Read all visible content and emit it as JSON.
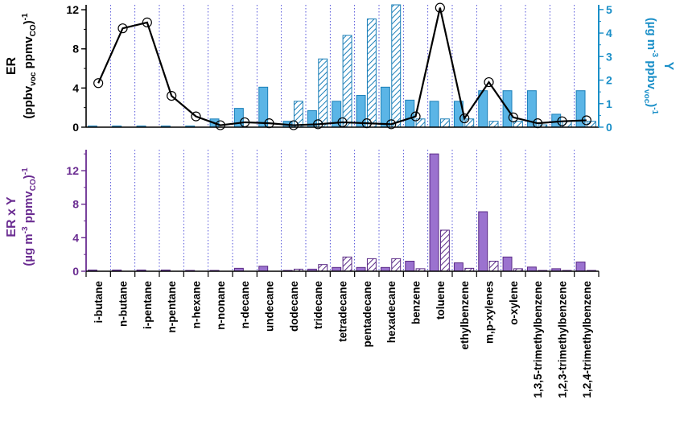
{
  "chart_data": [
    {
      "type": "bar+line",
      "panel": "top",
      "categories": [
        "i-butane",
        "n-butane",
        "i-pentane",
        "n-pentane",
        "n-hexane",
        "n-nonane",
        "n-decane",
        "undecane",
        "dodecane",
        "tridecane",
        "tetradecane",
        "pentadecane",
        "hexadecane",
        "benzene",
        "toluene",
        "ethylbenzene",
        "m,p-xylenes",
        "o-xylene",
        "1,3,5-trimethylbenzene",
        "1,2,3-trimethylbenzene",
        "1,2,4-trimethylbenzene"
      ],
      "left_axis": {
        "label_main": "ER",
        "label_unit": [
          "(ppbv",
          "voc",
          " ppmv",
          "CO",
          ")",
          "-1"
        ],
        "ylim": [
          0,
          12.5
        ],
        "ticks": [
          0,
          4,
          8,
          12
        ],
        "color": "#000000"
      },
      "right_axis": {
        "label_main": "Y",
        "label_unit": [
          "(µg m",
          "-3",
          " ppbv",
          "voc",
          ")",
          "-1"
        ],
        "ylim": [
          0,
          5.2
        ],
        "ticks": [
          0,
          1,
          2,
          3,
          4,
          5
        ],
        "color": "#1a8fc8"
      },
      "series": [
        {
          "axis": "left",
          "style": "line-marker",
          "color": "#000000",
          "values": [
            4.5,
            10.1,
            10.7,
            3.2,
            1.1,
            0.2,
            0.5,
            0.4,
            0.2,
            0.3,
            0.5,
            0.4,
            0.3,
            1.1,
            12.2,
            0.9,
            4.6,
            1.0,
            0.4,
            0.6,
            0.7
          ]
        },
        {
          "axis": "right",
          "style": "bar-solid",
          "color": "#5bb5e6",
          "values": [
            0.05,
            0.05,
            0.05,
            0.05,
            0.05,
            0.35,
            0.8,
            1.7,
            0.25,
            0.7,
            1.1,
            1.35,
            1.7,
            1.15,
            1.1,
            1.1,
            1.55,
            1.55,
            1.55,
            0.55,
            1.55
          ]
        },
        {
          "axis": "right",
          "style": "bar-hatched",
          "color": "#5bb5e6",
          "values": [
            0,
            0,
            0,
            0,
            0,
            0,
            0,
            0,
            1.1,
            2.9,
            3.9,
            4.6,
            5.2,
            0.35,
            0.35,
            0.35,
            0.25,
            0.25,
            0.1,
            0.25,
            0.25
          ]
        }
      ]
    },
    {
      "type": "bar",
      "panel": "bottom",
      "categories_ref": "top",
      "left_axis": {
        "label_main": "ER x Y",
        "label_unit": [
          "(µg m",
          "-3",
          " ppmv",
          "CO",
          ")",
          "-1"
        ],
        "ylim": [
          0,
          14.5
        ],
        "ticks": [
          0,
          4,
          8,
          12
        ],
        "color": "#6a2c91"
      },
      "series": [
        {
          "style": "bar-solid",
          "color": "#9b72cf",
          "values": [
            0.15,
            0.15,
            0.15,
            0.15,
            0.1,
            0.1,
            0.35,
            0.6,
            0.1,
            0.25,
            0.45,
            0.45,
            0.45,
            1.2,
            14.0,
            1.0,
            7.1,
            1.7,
            0.5,
            0.3,
            1.1
          ]
        },
        {
          "style": "bar-hatched",
          "color": "#9b72cf",
          "values": [
            0,
            0,
            0,
            0,
            0,
            0,
            0,
            0,
            0.25,
            0.8,
            1.7,
            1.5,
            1.5,
            0.3,
            4.9,
            0.35,
            1.2,
            0.3,
            0.1,
            0.1,
            0.1
          ]
        }
      ]
    }
  ]
}
